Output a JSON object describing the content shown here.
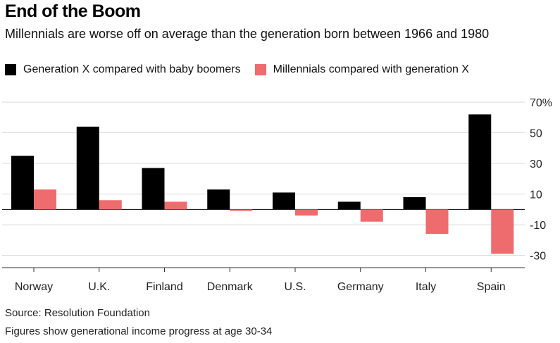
{
  "header": {
    "title": "End of the Boom",
    "subtitle": "Millennials are worse off on average than the generation born between 1966 and 1980"
  },
  "legend": [
    {
      "label": "Generation X compared with baby boomers",
      "color": "#000000"
    },
    {
      "label": "Millennials compared with generation X",
      "color": "#ee6b6e"
    }
  ],
  "footer": {
    "source": "Source: Resolution Foundation",
    "note": "Figures show generational income progress at age 30-34"
  },
  "chart_data": {
    "type": "bar",
    "title": "End of the Boom",
    "subtitle": "Millennials are worse off on average than the generation born between 1966 and 1980",
    "categories": [
      "Norway",
      "U.K.",
      "Finland",
      "Denmark",
      "U.S.",
      "Germany",
      "Italy",
      "Spain"
    ],
    "series": [
      {
        "name": "Generation X compared with baby boomers",
        "color": "#000000",
        "values": [
          35,
          54,
          27,
          13,
          11,
          5,
          8,
          62
        ]
      },
      {
        "name": "Millennials compared with generation X",
        "color": "#ee6b6e",
        "values": [
          13,
          6,
          5,
          -1,
          -4,
          -8,
          -16,
          -29
        ]
      }
    ],
    "yticks": [
      70,
      50,
      30,
      10,
      -10,
      -30
    ],
    "ytick_labels": [
      "70%",
      "50",
      "30",
      "10",
      "-10",
      "-30"
    ],
    "ylim": [
      -38,
      70
    ],
    "grid": true,
    "legend_position": "top-left",
    "axis_side": "right"
  }
}
